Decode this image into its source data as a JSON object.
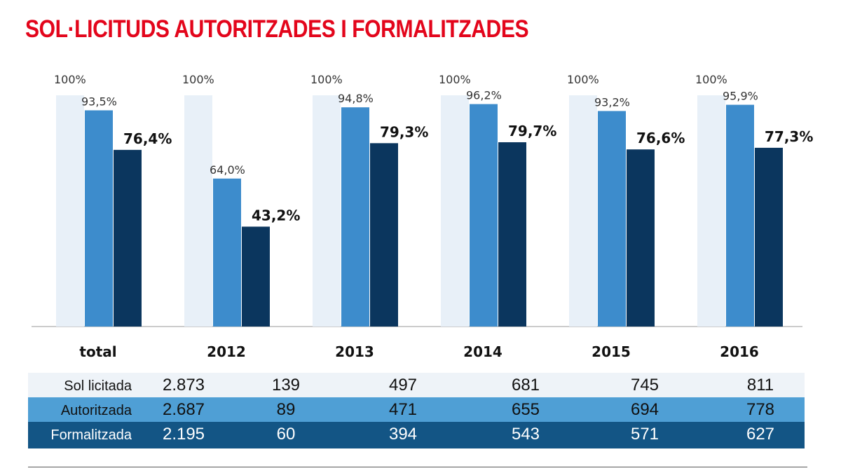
{
  "chart_data": {
    "type": "bar",
    "title": "SOL·LICITUDS AUTORITZADES I FORMALITZADES",
    "categories": [
      "total",
      "2012",
      "2013",
      "2014",
      "2015",
      "2016"
    ],
    "ylim": [
      0,
      100
    ],
    "grid": false,
    "series": [
      {
        "name": "Sol licitada",
        "values": [
          100,
          100,
          100,
          100,
          100,
          100
        ],
        "labels": [
          "100%",
          "100%",
          "100%",
          "100%",
          "100%",
          "100%"
        ],
        "color": "#e8f0f8"
      },
      {
        "name": "Autoritzada",
        "values": [
          93.5,
          64.0,
          94.8,
          96.2,
          93.2,
          95.9
        ],
        "labels": [
          "93,5%",
          "64,0%",
          "94,8%",
          "96,2%",
          "93,2%",
          "95,9%"
        ],
        "color": "#3d8ccc"
      },
      {
        "name": "Formalitzada",
        "values": [
          76.4,
          43.2,
          79.3,
          79.7,
          76.6,
          77.3
        ],
        "labels": [
          "76,4%",
          "43,2%",
          "79,3%",
          "79,7%",
          "76,6%",
          "77,3%"
        ],
        "color": "#0b365e"
      }
    ],
    "table": {
      "rows": [
        {
          "label": "Sol licitada",
          "values": [
            "2.873",
            "139",
            "497",
            "681",
            "745",
            "811"
          ],
          "bg": "#eef3f8",
          "fg": "#111"
        },
        {
          "label": "Autoritzada",
          "values": [
            "2.687",
            "89",
            "471",
            "655",
            "694",
            "778"
          ],
          "bg": "#4f9fd5",
          "fg": "#111"
        },
        {
          "label": "Formalitzada",
          "values": [
            "2.195",
            "60",
            "394",
            "543",
            "571",
            "627"
          ],
          "bg": "#135585",
          "fg": "#fff"
        }
      ]
    }
  }
}
